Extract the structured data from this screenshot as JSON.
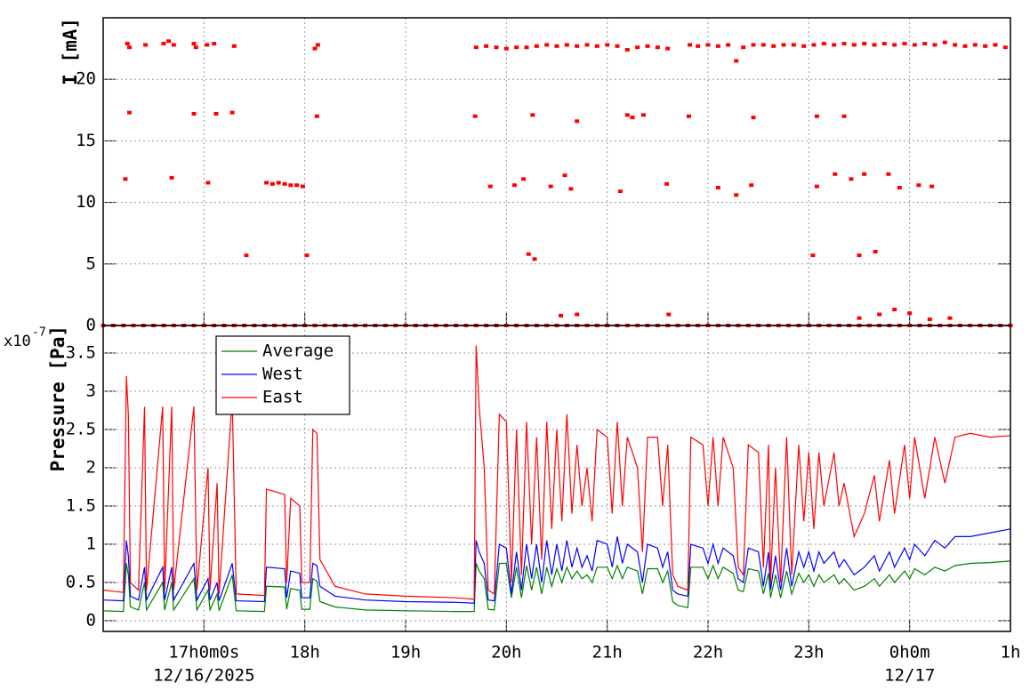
{
  "chart_data": [
    {
      "type": "scatter",
      "y_label": "I [mA]",
      "color": "#ff0000",
      "grid": true,
      "xlim": [
        16,
        25
      ],
      "ylim": [
        0,
        25
      ],
      "yticks": [
        0,
        5,
        10,
        15,
        20
      ],
      "x": [
        16.0,
        16.1,
        16.2,
        16.3,
        16.4,
        16.5,
        16.6,
        16.7,
        16.8,
        16.9,
        17.0,
        17.1,
        17.2,
        17.3,
        17.4,
        17.5,
        17.6,
        17.7,
        17.8,
        17.9,
        18.0,
        18.1,
        18.2,
        18.3,
        18.4,
        18.5,
        18.6,
        18.7,
        18.8,
        18.9,
        19.0,
        19.1,
        19.2,
        19.3,
        19.4,
        19.5,
        19.6,
        19.7,
        19.8,
        19.9,
        20.0,
        20.1,
        20.2,
        20.3,
        20.4,
        20.5,
        20.6,
        20.7,
        20.8,
        20.9,
        21.0,
        21.1,
        21.2,
        21.3,
        21.4,
        21.5,
        21.6,
        21.7,
        21.8,
        21.9,
        22.0,
        22.1,
        22.2,
        22.3,
        22.4,
        22.5,
        22.6,
        22.7,
        22.8,
        22.9,
        23.0,
        23.1,
        23.2,
        23.3,
        23.4,
        23.5,
        23.6,
        23.7,
        23.8,
        23.9,
        24.0,
        24.1,
        24.2,
        24.3,
        24.4,
        24.5,
        24.6,
        24.7,
        24.8,
        24.9,
        25.0,
        16.24,
        16.26,
        16.42,
        16.6,
        16.65,
        16.7,
        16.9,
        16.92,
        17.03,
        17.1,
        17.3,
        18.1,
        18.13,
        19.7,
        19.8,
        19.9,
        20.0,
        20.1,
        20.2,
        20.3,
        20.4,
        20.5,
        20.6,
        20.7,
        20.8,
        20.9,
        21.0,
        21.1,
        21.2,
        21.3,
        21.4,
        21.5,
        21.6,
        21.82,
        21.9,
        22.0,
        22.1,
        22.2,
        22.28,
        22.35,
        22.45,
        22.55,
        22.65,
        22.75,
        22.85,
        22.95,
        23.05,
        23.15,
        23.25,
        23.35,
        23.45,
        23.55,
        23.65,
        23.75,
        23.85,
        23.95,
        24.05,
        24.15,
        24.25,
        24.35,
        24.45,
        24.55,
        24.65,
        24.75,
        24.85,
        24.95,
        16.26,
        16.9,
        17.12,
        17.28,
        18.12,
        19.69,
        20.26,
        20.7,
        21.2,
        21.25,
        21.36,
        21.81,
        22.45,
        23.08,
        23.35,
        17.62,
        17.68,
        17.74,
        17.8,
        17.86,
        17.92,
        17.98,
        16.22,
        16.68,
        17.04,
        19.84,
        20.08,
        20.17,
        20.44,
        20.58,
        20.64,
        21.13,
        21.59,
        22.1,
        22.28,
        22.43,
        23.08,
        23.26,
        23.42,
        23.55,
        23.79,
        23.9,
        24.09,
        24.22,
        17.42,
        18.02,
        20.22,
        20.28,
        23.04,
        23.5,
        23.66,
        20.54,
        20.7,
        21.61,
        23.5,
        23.7,
        23.85,
        24.0,
        24.2,
        24.4
      ],
      "values": [
        0,
        0,
        0,
        0,
        0,
        0,
        0,
        0,
        0,
        0,
        0,
        0,
        0,
        0,
        0,
        0,
        0,
        0,
        0,
        0,
        0,
        0,
        0,
        0,
        0,
        0,
        0,
        0,
        0,
        0,
        0,
        0,
        0,
        0,
        0,
        0,
        0,
        0,
        0,
        0,
        0,
        0,
        0,
        0,
        0,
        0,
        0,
        0,
        0,
        0,
        0,
        0,
        0,
        0,
        0,
        0,
        0,
        0,
        0,
        0,
        0,
        0,
        0,
        0,
        0,
        0,
        0,
        0,
        0,
        0,
        0,
        0,
        0,
        0,
        0,
        0,
        0,
        0,
        0,
        0,
        0,
        0,
        0,
        0,
        0,
        0,
        0,
        0,
        0,
        0,
        0,
        22.9,
        22.6,
        22.8,
        22.9,
        23.1,
        22.8,
        22.9,
        22.6,
        22.8,
        22.9,
        22.7,
        22.5,
        22.8,
        22.6,
        22.7,
        22.6,
        22.5,
        22.6,
        22.6,
        22.7,
        22.8,
        22.7,
        22.8,
        22.7,
        22.8,
        22.7,
        22.8,
        22.7,
        22.4,
        22.6,
        22.7,
        22.6,
        22.5,
        22.8,
        22.7,
        22.8,
        22.7,
        22.8,
        21.5,
        22.6,
        22.8,
        22.8,
        22.7,
        22.8,
        22.8,
        22.7,
        22.8,
        22.9,
        22.8,
        22.9,
        22.8,
        22.9,
        22.8,
        22.9,
        22.8,
        22.9,
        22.8,
        22.9,
        22.8,
        23.0,
        22.8,
        22.7,
        22.8,
        22.7,
        22.8,
        22.6,
        17.3,
        17.2,
        17.2,
        17.3,
        17.0,
        17.0,
        17.1,
        16.6,
        17.1,
        16.9,
        17.1,
        17.0,
        16.9,
        17.0,
        17.0,
        11.6,
        11.5,
        11.6,
        11.5,
        11.4,
        11.4,
        11.3,
        11.9,
        12.0,
        11.6,
        11.3,
        11.4,
        11.9,
        11.3,
        12.2,
        11.1,
        10.9,
        11.5,
        11.2,
        10.6,
        11.4,
        11.3,
        12.3,
        11.9,
        12.3,
        12.3,
        11.2,
        11.4,
        11.3,
        5.7,
        5.7,
        5.8,
        5.4,
        5.7,
        5.7,
        6.0,
        0.8,
        0.9,
        0.9,
        0.6,
        0.9,
        1.3,
        1.0,
        0.5,
        0.6
      ]
    },
    {
      "type": "line",
      "y_label": "Pressure [Pa]",
      "y_multiplier_base": "x10",
      "y_multiplier_exponent": "-7",
      "grid": true,
      "legend": "top-left",
      "xlim": [
        16,
        25
      ],
      "xticks": [
        {
          "value": 17,
          "label": "17h0m0s"
        },
        {
          "value": 18,
          "label": "18h"
        },
        {
          "value": 19,
          "label": "19h"
        },
        {
          "value": 20,
          "label": "20h"
        },
        {
          "value": 21,
          "label": "21h"
        },
        {
          "value": 22,
          "label": "22h"
        },
        {
          "value": 23,
          "label": "23h"
        },
        {
          "value": 24,
          "label": "0h0m"
        },
        {
          "value": 25,
          "label": "1h"
        }
      ],
      "x_date_labels": [
        {
          "x": 17,
          "text": "12/16/2025"
        },
        {
          "x": 24,
          "text": "12/17"
        }
      ],
      "ylim": [
        -0.14,
        3.86
      ],
      "yticks": [
        0,
        0.5,
        1,
        1.5,
        2,
        2.5,
        3,
        3.5
      ],
      "x": [
        16.0,
        16.2,
        16.23,
        16.25,
        16.27,
        16.35,
        16.41,
        16.43,
        16.59,
        16.61,
        16.68,
        16.7,
        16.9,
        16.93,
        17.04,
        17.06,
        17.13,
        17.15,
        17.28,
        17.32,
        17.6,
        17.62,
        17.8,
        17.82,
        17.86,
        17.95,
        17.97,
        18.05,
        18.08,
        18.12,
        18.15,
        18.3,
        18.6,
        19.0,
        19.5,
        19.68,
        19.7,
        19.73,
        19.78,
        19.82,
        19.88,
        19.93,
        20.0,
        20.05,
        20.1,
        20.15,
        20.2,
        20.25,
        20.3,
        20.35,
        20.4,
        20.45,
        20.5,
        20.55,
        20.6,
        20.65,
        20.7,
        20.75,
        20.8,
        20.85,
        20.9,
        21.0,
        21.05,
        21.1,
        21.15,
        21.2,
        21.3,
        21.35,
        21.4,
        21.5,
        21.55,
        21.6,
        21.65,
        21.7,
        21.8,
        21.83,
        21.95,
        22.0,
        22.05,
        22.1,
        22.15,
        22.25,
        22.3,
        22.35,
        22.4,
        22.5,
        22.55,
        22.6,
        22.62,
        22.67,
        22.72,
        22.78,
        22.83,
        22.9,
        22.95,
        23.0,
        23.05,
        23.1,
        23.15,
        23.25,
        23.3,
        23.35,
        23.45,
        23.55,
        23.65,
        23.7,
        23.8,
        23.85,
        23.95,
        24.0,
        24.05,
        24.15,
        24.25,
        24.35,
        24.45,
        24.6,
        24.8,
        25.0
      ],
      "series": [
        {
          "name": "Average",
          "color": "#008000",
          "values": [
            0.13,
            0.12,
            0.75,
            0.6,
            0.18,
            0.14,
            0.5,
            0.14,
            0.5,
            0.14,
            0.5,
            0.14,
            0.55,
            0.14,
            0.4,
            0.14,
            0.35,
            0.13,
            0.6,
            0.13,
            0.12,
            0.45,
            0.44,
            0.15,
            0.42,
            0.4,
            0.15,
            0.15,
            0.55,
            0.52,
            0.25,
            0.18,
            0.14,
            0.13,
            0.12,
            0.12,
            0.75,
            0.65,
            0.55,
            0.15,
            0.14,
            0.75,
            0.75,
            0.3,
            0.7,
            0.3,
            0.72,
            0.4,
            0.7,
            0.35,
            0.7,
            0.45,
            0.68,
            0.5,
            0.7,
            0.55,
            0.65,
            0.55,
            0.6,
            0.5,
            0.7,
            0.7,
            0.55,
            0.72,
            0.55,
            0.7,
            0.65,
            0.35,
            0.68,
            0.68,
            0.5,
            0.65,
            0.25,
            0.2,
            0.17,
            0.7,
            0.7,
            0.55,
            0.72,
            0.55,
            0.7,
            0.62,
            0.4,
            0.38,
            0.68,
            0.65,
            0.35,
            0.62,
            0.3,
            0.6,
            0.3,
            0.65,
            0.35,
            0.62,
            0.5,
            0.6,
            0.45,
            0.6,
            0.5,
            0.6,
            0.48,
            0.55,
            0.4,
            0.45,
            0.55,
            0.45,
            0.6,
            0.5,
            0.65,
            0.55,
            0.68,
            0.6,
            0.7,
            0.65,
            0.72,
            0.75,
            0.76,
            0.78
          ]
        },
        {
          "name": "West",
          "color": "#0000ff",
          "values": [
            0.27,
            0.26,
            1.05,
            0.85,
            0.32,
            0.27,
            0.7,
            0.27,
            0.7,
            0.27,
            0.7,
            0.27,
            0.75,
            0.27,
            0.55,
            0.27,
            0.5,
            0.26,
            0.75,
            0.26,
            0.25,
            0.7,
            0.68,
            0.3,
            0.65,
            0.62,
            0.3,
            0.3,
            0.75,
            0.72,
            0.45,
            0.32,
            0.27,
            0.25,
            0.24,
            0.23,
            1.05,
            0.9,
            0.75,
            0.27,
            0.26,
            1.0,
            0.95,
            0.35,
            0.9,
            0.4,
            1.0,
            0.55,
            1.0,
            0.5,
            1.05,
            0.6,
            1.0,
            0.65,
            1.05,
            0.7,
            0.95,
            0.7,
            0.85,
            0.65,
            1.05,
            1.0,
            0.7,
            1.1,
            0.75,
            1.0,
            0.9,
            0.5,
            1.0,
            0.95,
            0.7,
            0.9,
            0.4,
            0.35,
            0.32,
            1.0,
            0.95,
            0.75,
            1.0,
            0.75,
            0.95,
            0.85,
            0.55,
            0.5,
            0.95,
            0.9,
            0.45,
            0.9,
            0.4,
            0.85,
            0.4,
            0.95,
            0.45,
            0.9,
            0.7,
            0.9,
            0.65,
            0.9,
            0.75,
            0.9,
            0.7,
            0.8,
            0.6,
            0.7,
            0.85,
            0.65,
            0.9,
            0.7,
            0.95,
            0.8,
            1.0,
            0.85,
            1.05,
            0.95,
            1.1,
            1.1,
            1.15,
            1.2
          ]
        },
        {
          "name": "East",
          "color": "#ff0000",
          "values": [
            0.4,
            0.37,
            3.2,
            2.7,
            0.5,
            0.4,
            2.8,
            0.4,
            2.8,
            0.4,
            2.8,
            0.4,
            2.8,
            0.4,
            2.0,
            0.4,
            1.8,
            0.35,
            2.9,
            0.35,
            0.33,
            1.72,
            1.65,
            0.5,
            1.6,
            1.5,
            0.5,
            0.5,
            2.5,
            2.45,
            0.8,
            0.45,
            0.35,
            0.32,
            0.3,
            0.28,
            3.6,
            2.8,
            2.0,
            0.4,
            0.35,
            2.7,
            2.6,
            0.5,
            2.5,
            0.6,
            2.6,
            1.0,
            2.4,
            0.8,
            2.6,
            1.2,
            2.5,
            1.3,
            2.7,
            1.4,
            2.3,
            1.5,
            2.0,
            1.3,
            2.5,
            2.4,
            1.4,
            2.6,
            1.5,
            2.4,
            2.0,
            0.9,
            2.4,
            2.4,
            1.5,
            2.3,
            0.6,
            0.45,
            0.4,
            2.4,
            2.3,
            1.5,
            2.4,
            1.5,
            2.4,
            2.0,
            0.7,
            0.6,
            2.3,
            2.2,
            0.7,
            2.3,
            0.5,
            2.0,
            0.5,
            2.4,
            0.6,
            2.3,
            1.3,
            2.2,
            1.2,
            2.2,
            1.5,
            2.2,
            1.5,
            1.8,
            1.1,
            1.4,
            1.9,
            1.3,
            2.1,
            1.4,
            2.3,
            1.6,
            2.4,
            1.6,
            2.4,
            1.8,
            2.4,
            2.45,
            2.4,
            2.42
          ]
        }
      ]
    }
  ]
}
